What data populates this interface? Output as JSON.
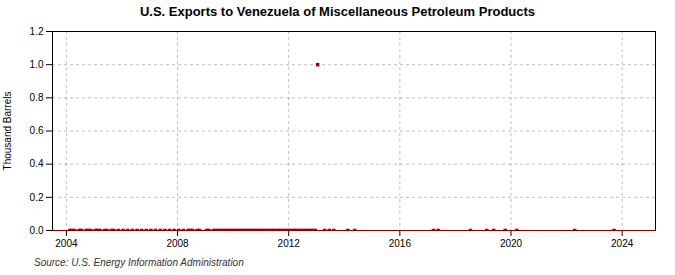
{
  "chart_data": {
    "type": "scatter",
    "title": "U.S. Exports to Venezuela of Miscellaneous Petroleum Products",
    "ylabel": "Thousand Barrels",
    "source": "Source: U.S. Energy Information Administration",
    "xlim": [
      2003.5,
      2025.2
    ],
    "ylim": [
      0,
      1.2
    ],
    "xticks": [
      2004,
      2008,
      2012,
      2016,
      2020,
      2024
    ],
    "yticks": [
      {
        "value": 0,
        "label": "0.0"
      },
      0.2,
      0.4,
      0.6,
      0.8,
      {
        "value": 1,
        "label": "1.0"
      },
      1.2
    ],
    "grid": true,
    "color": "#aa0000",
    "marker": "square",
    "x": [
      2004.125,
      2004.2083333333,
      2004.2916666667,
      2004.4583333333,
      2004.5416666667,
      2004.7083333333,
      2004.7916666667,
      2004.875,
      2005.0416666667,
      2005.125,
      2005.2083333333,
      2005.375,
      2005.4583333333,
      2005.625,
      2005.7083333333,
      2005.875,
      2006.0416666667,
      2006.2083333333,
      2006.375,
      2006.5416666667,
      2006.7083333333,
      2006.875,
      2007.0416666667,
      2007.2083333333,
      2007.375,
      2007.5416666667,
      2007.7083333333,
      2007.875,
      2008.0416666667,
      2008.2083333333,
      2008.375,
      2008.4583333333,
      2008.5416666667,
      2008.7083333333,
      2008.7916666667,
      2009.0416666667,
      2009.125,
      2009.2916666667,
      2009.375,
      2009.4583333333,
      2009.5416666667,
      2009.625,
      2009.7083333333,
      2009.7916666667,
      2009.875,
      2009.9583333333,
      2010.0416666667,
      2010.125,
      2010.2083333333,
      2010.2916666667,
      2010.375,
      2010.4583333333,
      2010.5416666667,
      2010.625,
      2010.7083333333,
      2010.7916666667,
      2010.875,
      2010.9583333333,
      2011.0416666667,
      2011.125,
      2011.2083333333,
      2011.2916666667,
      2011.375,
      2011.4583333333,
      2011.5416666667,
      2011.625,
      2011.7083333333,
      2011.7916666667,
      2011.875,
      2011.9583333333,
      2012.0416666667,
      2012.125,
      2012.2083333333,
      2012.2916666667,
      2012.375,
      2012.4583333333,
      2012.5416666667,
      2012.625,
      2012.7083333333,
      2012.7916666667,
      2012.875,
      2012.9583333333,
      2013.0416666667,
      2013.2916666667,
      2013.4583333333,
      2013.625,
      2014.125,
      2014.375,
      2017.2083333333,
      2017.375,
      2018.5416666667,
      2019.125,
      2019.375,
      2019.7916666667,
      2020.2083333333,
      2022.2916666667,
      2023.7083333333
    ],
    "values": [
      0,
      0,
      0,
      0,
      0,
      0,
      0,
      0,
      0,
      0,
      0,
      0,
      0,
      0,
      0,
      0,
      0,
      0,
      0,
      0,
      0,
      0,
      0,
      0,
      0,
      0,
      0,
      0,
      0,
      0,
      0,
      0,
      0,
      0,
      0,
      0,
      0,
      0,
      0,
      0,
      0,
      0,
      0,
      0,
      0,
      0,
      0,
      0,
      0,
      0,
      0,
      0,
      0,
      0,
      0,
      0,
      0,
      0,
      0,
      0,
      0,
      0,
      0,
      0,
      0,
      0,
      0,
      0,
      0,
      0,
      0,
      0,
      0,
      0,
      0,
      0,
      0,
      0,
      0,
      0,
      0,
      0,
      1.0,
      0,
      0,
      0,
      0,
      0,
      0,
      0,
      0,
      0,
      0,
      0,
      0,
      0,
      0
    ]
  }
}
